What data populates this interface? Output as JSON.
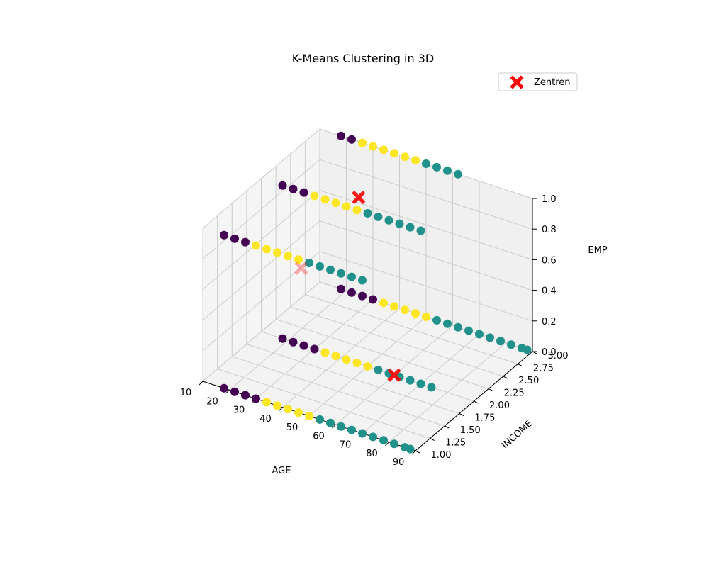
{
  "chart_data": {
    "type": "scatter",
    "title": "K-Means Clustering in 3D",
    "xlabel": "AGE",
    "ylabel": "INCOME",
    "zlabel": "EMP",
    "x_ticks": [
      "10",
      "20",
      "30",
      "40",
      "50",
      "60",
      "70",
      "80",
      "90"
    ],
    "y_ticks": [
      "1.00",
      "1.25",
      "1.50",
      "1.75",
      "2.00",
      "2.25",
      "2.50",
      "2.75",
      "3.00"
    ],
    "z_ticks": [
      "0.0",
      "0.2",
      "0.4",
      "0.6",
      "0.8",
      "1.0"
    ],
    "xlim": [
      10,
      90
    ],
    "ylim": [
      1,
      3
    ],
    "zlim": [
      0,
      1
    ],
    "grid": true,
    "legend": {
      "position": "top-right",
      "entries": [
        "Zentren"
      ]
    },
    "cluster_colors": [
      "#440154",
      "#21918c",
      "#fde725"
    ],
    "centroid_color": "#ff0000",
    "point_rows": [
      {
        "income": 1,
        "emp": 0,
        "x": [
          18,
          22,
          26,
          30,
          34,
          38,
          42,
          46,
          50,
          54,
          58,
          62,
          66,
          70,
          74,
          78,
          82,
          86,
          88
        ],
        "cluster": [
          0,
          0,
          0,
          0,
          2,
          2,
          2,
          2,
          2,
          1,
          1,
          1,
          1,
          1,
          1,
          1,
          1,
          1,
          1
        ]
      },
      {
        "income": 3,
        "emp": 0,
        "x": [
          18,
          22,
          26,
          30,
          34,
          38,
          42,
          46,
          50,
          54,
          58,
          62,
          66,
          70,
          74,
          78,
          82,
          86,
          88
        ],
        "cluster": [
          0,
          0,
          0,
          0,
          2,
          2,
          2,
          2,
          2,
          1,
          1,
          1,
          1,
          1,
          1,
          1,
          1,
          1,
          1
        ]
      },
      {
        "income": 1,
        "emp": 1,
        "x": [
          18,
          22,
          26,
          30,
          34,
          38,
          42,
          46,
          50,
          54,
          58,
          62,
          66,
          70
        ],
        "cluster": [
          0,
          0,
          0,
          2,
          2,
          2,
          2,
          2,
          1,
          1,
          1,
          1,
          1,
          1
        ]
      },
      {
        "income": 2,
        "emp": 1,
        "x": [
          18,
          22,
          26,
          30,
          34,
          38,
          42,
          46,
          50,
          54,
          58,
          62,
          66,
          70
        ],
        "cluster": [
          0,
          0,
          0,
          2,
          2,
          2,
          2,
          2,
          1,
          1,
          1,
          1,
          1,
          1
        ]
      },
      {
        "income": 3,
        "emp": 1,
        "x": [
          18,
          22,
          26,
          30,
          34,
          38,
          42,
          46,
          50,
          54,
          58,
          62
        ],
        "cluster": [
          0,
          0,
          2,
          2,
          2,
          2,
          2,
          2,
          1,
          1,
          1,
          1
        ]
      },
      {
        "income": 2,
        "emp": 0,
        "x": [
          18,
          22,
          26,
          30,
          34,
          38,
          42,
          46,
          50,
          54,
          58,
          62,
          66,
          70,
          74
        ],
        "cluster": [
          0,
          0,
          0,
          0,
          2,
          2,
          2,
          2,
          2,
          1,
          1,
          1,
          1,
          1,
          1
        ]
      }
    ],
    "centroids": [
      {
        "x": 60,
        "y": 2.0,
        "z": 0.0,
        "depth_faded": false
      },
      {
        "x": 40,
        "y": 2.3,
        "z": 0.95,
        "depth_faded": false
      },
      {
        "x": 25,
        "y": 2.0,
        "z": 0.5,
        "depth_faded": true
      }
    ]
  }
}
